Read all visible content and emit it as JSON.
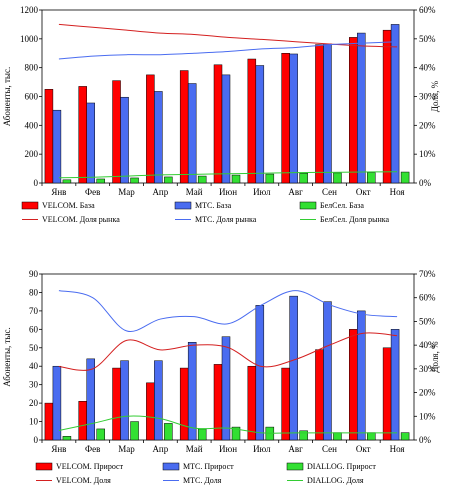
{
  "chart_data": [
    {
      "type": "bar",
      "categories": [
        "Янв",
        "Фев",
        "Мар",
        "Апр",
        "Май",
        "Июн",
        "Июл",
        "Авг",
        "Сен",
        "Окт",
        "Ноя"
      ],
      "ylabel": "Абоненты, тыс.",
      "y2label": "Доля, %",
      "ylim": [
        0,
        1200
      ],
      "yticks": [
        0,
        200,
        400,
        600,
        800,
        1000,
        1200
      ],
      "y2lim": [
        0,
        60
      ],
      "y2ticks": [
        "0%",
        "10%",
        "20%",
        "30%",
        "40%",
        "50%",
        "60%"
      ],
      "grid": false,
      "legend_position": "bottom",
      "series": [
        {
          "name": "VELCOM. База",
          "kind": "bar",
          "axis": "left",
          "color": "#ff0000",
          "values": [
            650,
            670,
            710,
            750,
            780,
            820,
            860,
            900,
            960,
            1010,
            1060
          ]
        },
        {
          "name": "МТС. База",
          "kind": "bar",
          "axis": "left",
          "color": "#4a6cf0",
          "values": [
            505,
            555,
            595,
            635,
            690,
            750,
            815,
            895,
            965,
            1040,
            1100
          ]
        },
        {
          "name": "БелСел. База",
          "kind": "bar",
          "axis": "left",
          "color": "#33e033",
          "values": [
            22,
            28,
            35,
            42,
            48,
            55,
            62,
            68,
            70,
            73,
            76
          ]
        },
        {
          "name": "VELCOM. Доля рынка",
          "kind": "line",
          "axis": "right",
          "color": "#d42020",
          "values": [
            55,
            54,
            53,
            52,
            51.5,
            50.5,
            49.8,
            49,
            48.2,
            47.5,
            47.2
          ]
        },
        {
          "name": "МТС. Доля рынка",
          "kind": "line",
          "axis": "right",
          "color": "#4a6cf0",
          "values": [
            43,
            44,
            44.5,
            44.5,
            45,
            45.6,
            46.5,
            47,
            48,
            48.5,
            49
          ]
        },
        {
          "name": "БелСел. Доля рынка",
          "kind": "line",
          "axis": "right",
          "color": "#33cc33",
          "values": [
            1.8,
            2,
            2.4,
            2.8,
            3,
            3.2,
            3.4,
            3.6,
            3.7,
            3.8,
            3.9
          ]
        }
      ]
    },
    {
      "type": "bar",
      "categories": [
        "Янв",
        "Фев",
        "Мар",
        "Апр",
        "Май",
        "Июн",
        "Июл",
        "Авг",
        "Сен",
        "Окт",
        "Ноя"
      ],
      "ylabel": "Абоненты, тыс.",
      "y2label": "Доля, %",
      "ylim": [
        0,
        90
      ],
      "yticks": [
        0,
        10,
        20,
        30,
        40,
        50,
        60,
        70,
        80,
        90
      ],
      "y2lim": [
        0,
        70
      ],
      "y2ticks": [
        "0%",
        "10%",
        "20%",
        "30%",
        "40%",
        "50%",
        "60%",
        "70%"
      ],
      "grid": false,
      "legend_position": "bottom",
      "series": [
        {
          "name": "VELCOM. Прирост",
          "kind": "bar",
          "axis": "left",
          "color": "#ff0000",
          "values": [
            20,
            21,
            39,
            31,
            39,
            41,
            40,
            39,
            49,
            60,
            50
          ]
        },
        {
          "name": "МТС. Прирост",
          "kind": "bar",
          "axis": "left",
          "color": "#4a6cf0",
          "values": [
            40,
            44,
            43,
            43,
            53,
            56,
            73,
            78,
            75,
            70,
            60
          ]
        },
        {
          "name": "DIALLOG. Прирост",
          "kind": "bar",
          "axis": "left",
          "color": "#33e033",
          "values": [
            2,
            6,
            10,
            9,
            6,
            7,
            7,
            5,
            4,
            4,
            4
          ]
        },
        {
          "name": "VELCOM. Доля",
          "kind": "line",
          "axis": "right",
          "color": "#d42020",
          "values": [
            31,
            30,
            42,
            38,
            40,
            39,
            31,
            34,
            40,
            45,
            44
          ]
        },
        {
          "name": "МТС. Доля",
          "kind": "line",
          "axis": "right",
          "color": "#4a6cf0",
          "values": [
            63,
            60,
            46,
            51,
            52,
            49,
            57,
            63,
            57,
            53,
            52
          ]
        },
        {
          "name": "DIALLOG. Доля",
          "kind": "line",
          "axis": "right",
          "color": "#33cc33",
          "values": [
            4,
            7,
            10,
            9,
            5,
            5,
            3,
            3,
            3,
            3,
            3
          ]
        }
      ]
    }
  ]
}
